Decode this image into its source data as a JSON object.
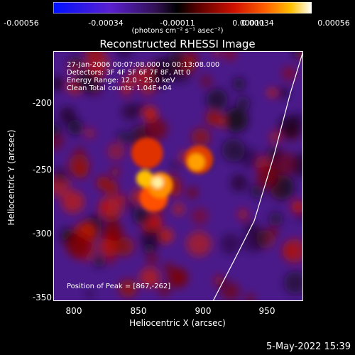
{
  "colorbar": {
    "tick_labels": [
      "-0.00056",
      "-0.00034",
      "-0.00011",
      "0.00011",
      "0.00034",
      "0.00056"
    ],
    "units": "(photons cm⁻² s⁻¹ asec⁻²)",
    "range": [
      -0.00056,
      0.00056
    ]
  },
  "plot": {
    "title": "Reconstructed RHESSI Image",
    "xlabel": "Heliocentric X (arcsec)",
    "ylabel": "Heliocentric Y (arcsec)",
    "xticks": [
      "800",
      "850",
      "900",
      "950"
    ],
    "yticks": [
      "-200",
      "-250",
      "-300",
      "-350"
    ],
    "info_lines": [
      "27-Jan-2006 00:07:08.000 to 00:13:08.000",
      "Detectors: 3F 4F 5F 6F 7F 8F, Att 0",
      "Energy Range: 12.0 - 25.0 keV",
      "Clean     Total counts: 1.04E+04"
    ],
    "peak_label": "Position of Peak = [867,-262]"
  },
  "footer": {
    "date": "5-May-2022 15:39"
  },
  "chart_data": {
    "type": "heatmap",
    "title": "Reconstructed RHESSI Image",
    "xlabel": "Heliocentric X (arcsec)",
    "ylabel": "Heliocentric Y (arcsec)",
    "xlim": [
      784,
      978
    ],
    "ylim": [
      -353,
      -157
    ],
    "xticks": [
      800,
      850,
      900,
      950
    ],
    "yticks": [
      -200,
      -250,
      -300,
      -350
    ],
    "colorbar_ticks": [
      -0.00056,
      -0.00034,
      -0.00011,
      0.00011,
      0.00034,
      0.00056
    ],
    "peak": {
      "x": 867,
      "y": -262
    },
    "limb_curve": [
      [
        908,
        -353
      ],
      [
        925,
        -320
      ],
      [
        940,
        -290
      ],
      [
        955,
        -240
      ],
      [
        968,
        -190
      ],
      [
        978,
        -157
      ]
    ],
    "colormap": [
      "#0000ff",
      "#8a2be2",
      "#000000",
      "#b00000",
      "#ff4000",
      "#ff9000",
      "#ffffff"
    ]
  }
}
